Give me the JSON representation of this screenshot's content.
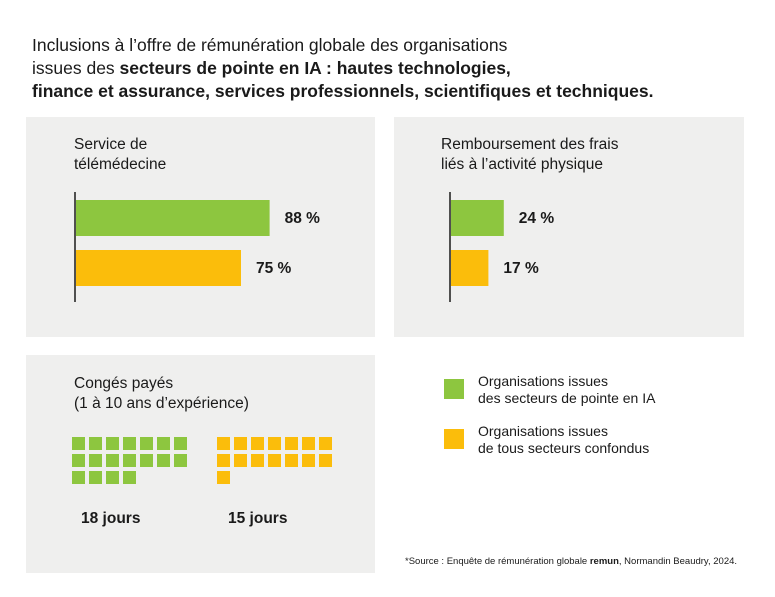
{
  "title": {
    "line1": "Inclusions à l’offre de rémunération globale des organisations",
    "line2_prefix": "issues des ",
    "line2_bold": "secteurs de pointe en IA : hautes technologies,",
    "line3_bold": "finance et assurance, services professionnels, scientifiques et techniques."
  },
  "colors": {
    "ai_sectors": "#8dc63f",
    "all_sectors": "#fbbd0b",
    "panel_bg": "#efefee"
  },
  "chart_data": [
    {
      "type": "bar",
      "title_lines": [
        "Service de",
        "télémédecine"
      ],
      "orientation": "horizontal",
      "series": [
        {
          "name": "Organisations issues des secteurs de pointe en IA",
          "value": 88,
          "label": "88 %"
        },
        {
          "name": "Organisations issues de tous secteurs confondus",
          "value": 75,
          "label": "75 %"
        }
      ],
      "xlim": [
        0,
        100
      ]
    },
    {
      "type": "bar",
      "title_lines": [
        "Remboursement des frais",
        "liés à l’activité physique"
      ],
      "orientation": "horizontal",
      "series": [
        {
          "name": "Organisations issues des secteurs de pointe en IA",
          "value": 24,
          "label": "24 %"
        },
        {
          "name": "Organisations issues de tous secteurs confondus",
          "value": 17,
          "label": "17 %"
        }
      ],
      "xlim": [
        0,
        100
      ]
    },
    {
      "type": "pictogram",
      "title_lines": [
        "Congés payés",
        "(1 à 10 ans d’expérience)"
      ],
      "series": [
        {
          "name": "Organisations issues des secteurs de pointe en IA",
          "value": 18,
          "label": "18 jours"
        },
        {
          "name": "Organisations issues de tous secteurs confondus",
          "value": 15,
          "label": "15 jours"
        }
      ]
    }
  ],
  "legend": {
    "items": [
      {
        "lines": [
          "Organisations issues",
          "des secteurs de pointe en IA"
        ],
        "color": "#8dc63f"
      },
      {
        "lines": [
          "Organisations issues",
          "de tous secteurs confondus"
        ],
        "color": "#fbbd0b"
      }
    ]
  },
  "source": {
    "prefix": "*Source : Enquête de rémunération globale ",
    "bold": "remun",
    "suffix": ", Normandin Beaudry, 2024."
  }
}
